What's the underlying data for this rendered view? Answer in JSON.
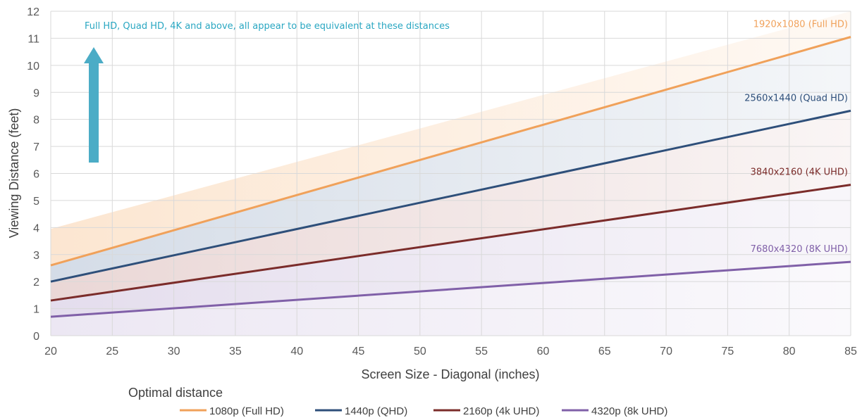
{
  "chart_data": {
    "type": "line",
    "title": "",
    "xlabel": "Screen Size - Diagonal (inches)",
    "ylabel": "Viewing Distance (feet)",
    "xlim": [
      20,
      85
    ],
    "ylim": [
      0,
      12
    ],
    "x_ticks": [
      "20",
      "25",
      "30",
      "35",
      "40",
      "45",
      "50",
      "55",
      "60",
      "65",
      "70",
      "75",
      "80",
      "85"
    ],
    "y_ticks": [
      "0",
      "1",
      "2",
      "3",
      "4",
      "5",
      "6",
      "7",
      "8",
      "9",
      "10",
      "11",
      "12"
    ],
    "grid": true,
    "x": [
      20,
      85
    ],
    "series": [
      {
        "name": "1080p (Full HD)",
        "line_label": "1920x1080 (Full HD)",
        "color": "#f0a15a",
        "values": [
          2.6,
          11.05
        ]
      },
      {
        "name": "1440p (QHD)",
        "line_label": "2560x1440 (Quad HD)",
        "color": "#2e4f7a",
        "values": [
          2.0,
          8.32
        ]
      },
      {
        "name": "2160p (4k UHD)",
        "line_label": "3840x2160 (4K UHD)",
        "color": "#7b2c2a",
        "values": [
          1.3,
          5.58
        ]
      },
      {
        "name": "4320p (8k UHD)",
        "line_label": "7680x4320 (8K UHD)",
        "color": "#8060a8",
        "values": [
          0.7,
          2.73
        ]
      }
    ],
    "bands": [
      {
        "color": "#fce6d1",
        "upper": [
          3.95,
          12.0
        ],
        "lower": [
          2.6,
          11.05
        ]
      },
      {
        "color": "#d4dce7",
        "upper": [
          2.6,
          11.05
        ],
        "lower": [
          2.0,
          8.32
        ]
      },
      {
        "color": "#ead7d6",
        "upper": [
          2.0,
          8.32
        ],
        "lower": [
          1.3,
          5.58
        ]
      },
      {
        "color": "#e4dded",
        "upper": [
          1.3,
          5.58
        ],
        "lower": [
          0.7,
          2.73
        ]
      },
      {
        "color": "#ece7f3",
        "upper": [
          0.7,
          2.73
        ],
        "lower": [
          0,
          0
        ]
      }
    ],
    "annotation": {
      "text": "Full HD, Quad HD, 4K and above, all appear to be equivalent at these distances",
      "color": "#2aa7c2",
      "arrow_color": "#4bacc6",
      "arrow_direction": "up"
    },
    "legend": {
      "title": "Optimal distance",
      "placement": "bottom"
    }
  }
}
